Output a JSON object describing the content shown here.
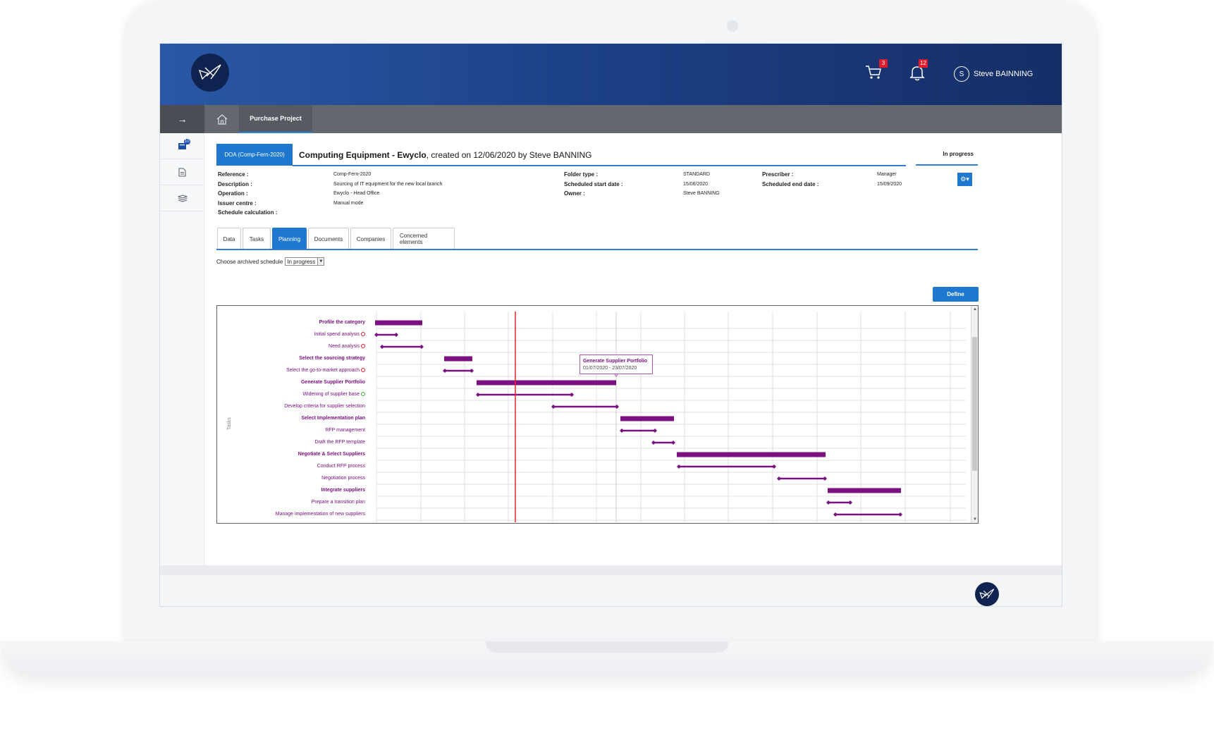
{
  "header": {
    "cart_count": "3",
    "notification_count": "12",
    "user_initial": "S",
    "user_name": "Steve BAINNING"
  },
  "nav": {
    "active_tab": "Purchase Project"
  },
  "sidebar": {
    "documents_badge": "10"
  },
  "project": {
    "doa_label": "DOA (Comp-Fern-2020)",
    "title_bold": "Computing Equipment - Ewyclo",
    "title_rest": ", created on 12/06/2020 by Steve BANNING",
    "status": "In progress"
  },
  "details": {
    "col1": [
      {
        "label": "Reference :",
        "value": "Comp-Fern-2020"
      },
      {
        "label": "Description :",
        "value": "Sourcing of IT equipment for the new local branch"
      },
      {
        "label": "Operation :",
        "value": ""
      },
      {
        "label": "Issuer centre :",
        "value": "Ewyclo - Head Office"
      },
      {
        "label": "Schedule calculation :",
        "value": "Manual mode"
      }
    ],
    "col2": [
      {
        "label": "Folder type :",
        "value": "STANDARD"
      },
      {
        "label": "Scheduled start date :",
        "value": "15/06/2020"
      },
      {
        "label": "Owner :",
        "value": "Steve BANNING"
      }
    ],
    "col3": [
      {
        "label": "Prescriber :",
        "value": "Manager"
      },
      {
        "label": "Scheduled end date :",
        "value": "15/09/2020"
      }
    ]
  },
  "tabs": [
    "Data",
    "Tasks",
    "Planning",
    "Documents",
    "Companies",
    "Concerned elements"
  ],
  "active_tab_index": 2,
  "archived": {
    "label": "Choose archived schedule",
    "selected": "In progress"
  },
  "define_label": "Define",
  "gantt": {
    "axis_label": "Tasks",
    "colors": {
      "bar": "#7b1180",
      "today": "#e0252b",
      "grid": "#e2e2e2"
    },
    "tooltip": {
      "title": "Generate Supplier Portfolio",
      "dates": "01/07/2020 - 23/07/2020"
    },
    "tasks": [
      {
        "name": "Profile the category",
        "summary": true,
        "status": ""
      },
      {
        "name": "Initial spend analysis",
        "summary": false,
        "status": "red"
      },
      {
        "name": "Need analysis",
        "summary": false,
        "status": "red"
      },
      {
        "name": "Select the sourcing strategy",
        "summary": true,
        "status": ""
      },
      {
        "name": "Select the go-to-market approach",
        "summary": false,
        "status": "red"
      },
      {
        "name": "Generate Supplier Portfolio",
        "summary": true,
        "status": ""
      },
      {
        "name": "Widening of supplier base",
        "summary": false,
        "status": "green"
      },
      {
        "name": "Develop criteria for supplier selection",
        "summary": false,
        "status": ""
      },
      {
        "name": "Select Implementation plan",
        "summary": true,
        "status": ""
      },
      {
        "name": "RFP management",
        "summary": false,
        "status": ""
      },
      {
        "name": "Draft the RFP template",
        "summary": false,
        "status": ""
      },
      {
        "name": "Negotiate & Select Suppliers",
        "summary": true,
        "status": ""
      },
      {
        "name": "Conduct RFP process",
        "summary": false,
        "status": ""
      },
      {
        "name": "Negotiation process",
        "summary": false,
        "status": ""
      },
      {
        "name": "Integrate suppliers",
        "summary": true,
        "status": ""
      },
      {
        "name": "Prepare a transition plan",
        "summary": false,
        "status": ""
      },
      {
        "name": "Manage implementation of new suppliers",
        "summary": false,
        "status": ""
      }
    ]
  }
}
